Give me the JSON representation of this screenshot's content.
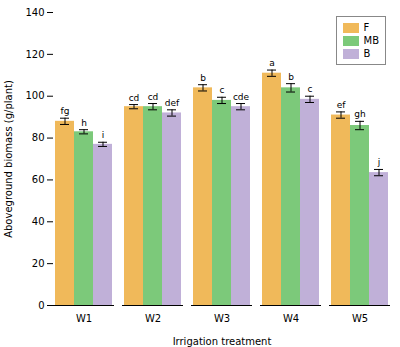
{
  "chart_data": {
    "type": "bar",
    "categories": [
      "W1",
      "W2",
      "W3",
      "W4",
      "W5"
    ],
    "series": [
      {
        "name": "F",
        "color": "#F0B95A",
        "values": [
          88.0,
          95.0,
          104.0,
          111.0,
          91.0
        ],
        "errors": [
          1.5,
          1.0,
          1.5,
          1.5,
          1.5
        ],
        "labels": [
          "fg",
          "cd",
          "b",
          "a",
          "ef"
        ]
      },
      {
        "name": "MB",
        "color": "#7CC97A",
        "values": [
          83.0,
          95.0,
          98.0,
          104.0,
          86.0
        ],
        "errors": [
          1.0,
          1.5,
          1.5,
          2.0,
          2.0
        ],
        "labels": [
          "h",
          "cd",
          "c",
          "b",
          "gh"
        ]
      },
      {
        "name": "B",
        "color": "#C0B0D8",
        "values": [
          77.0,
          92.0,
          95.0,
          98.5,
          63.5
        ],
        "errors": [
          1.0,
          1.5,
          1.5,
          1.5,
          1.5
        ],
        "labels": [
          "i",
          "def",
          "cde",
          "c",
          "j"
        ]
      }
    ],
    "xlabel": "Irrigation treatment",
    "ylabel": "Aboveground biomass (g/plant)",
    "ylim": [
      0,
      140
    ],
    "yticks": [
      0,
      20,
      40,
      60,
      80,
      100,
      120,
      140
    ],
    "grid": false,
    "legend": "upper right"
  }
}
